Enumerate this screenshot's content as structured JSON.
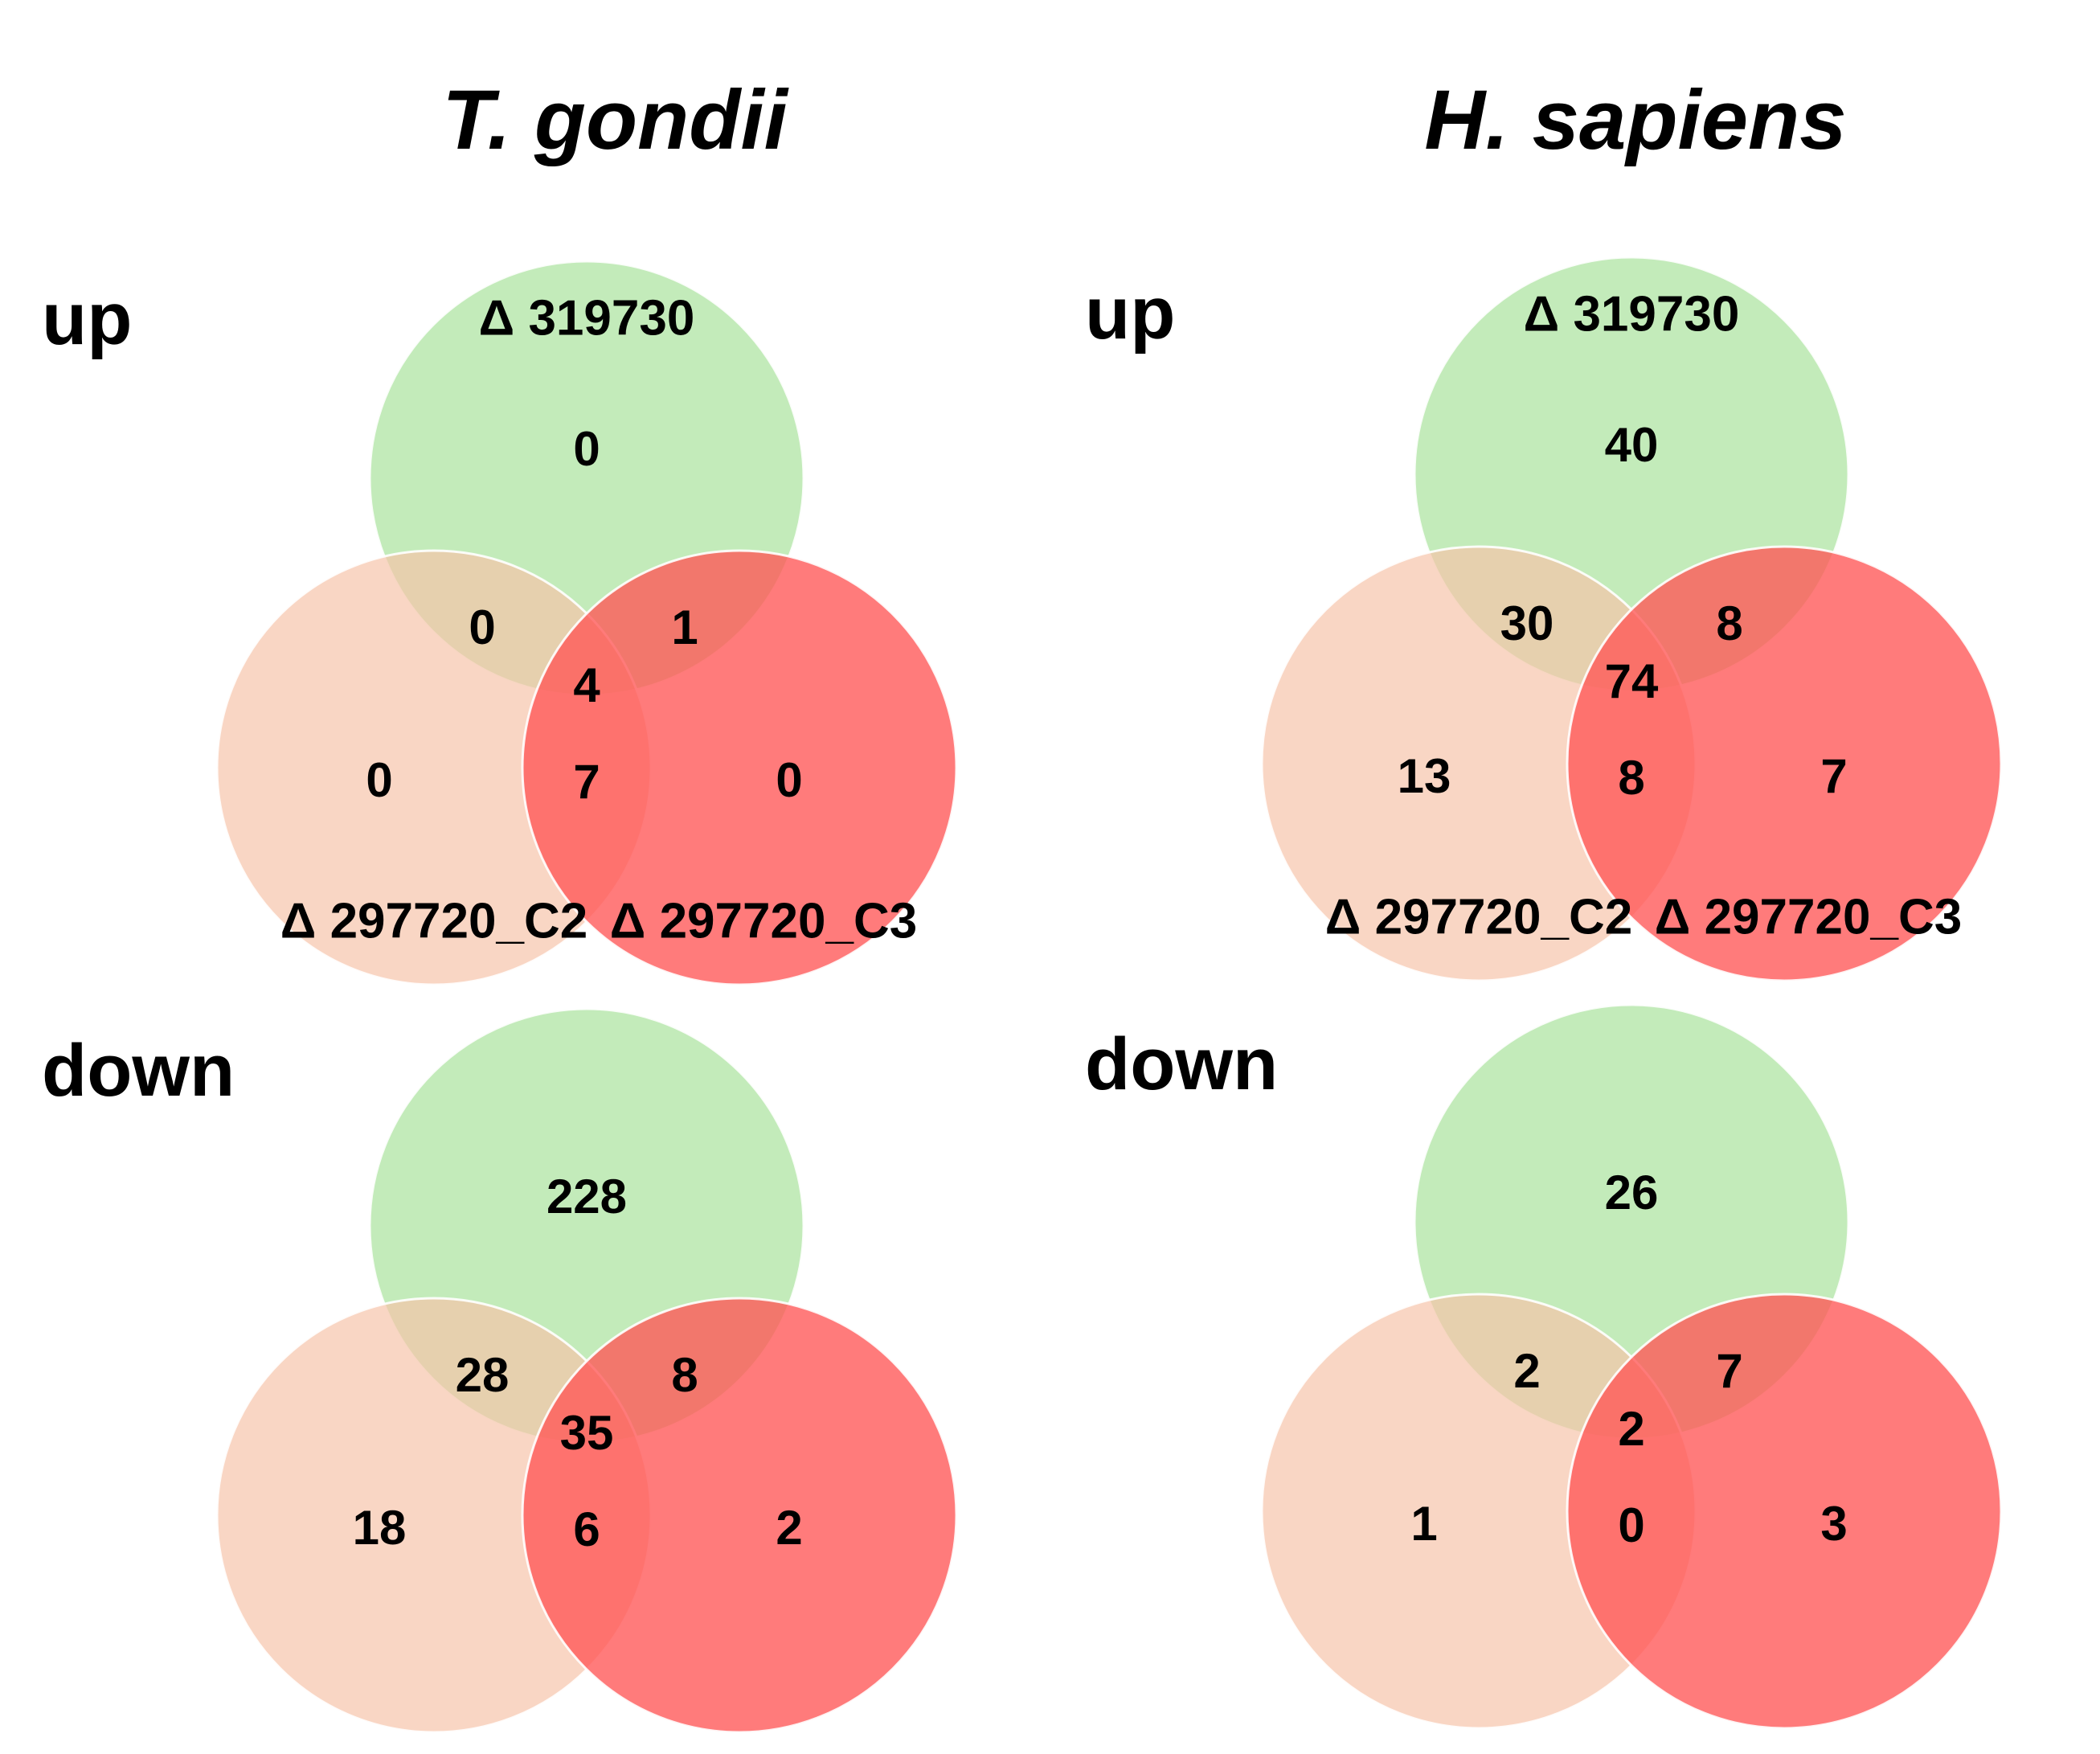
{
  "titles": {
    "left": "T. gondii",
    "right": "H. sapiens"
  },
  "row_labels": {
    "up": "up",
    "down": "down"
  },
  "colors": {
    "set_a": "#a6e29a",
    "set_b": "#f6c3a8",
    "set_c": "#ff5656"
  },
  "panels": [
    {
      "id": "tg-up",
      "set_labels": [
        "Δ 319730",
        "Δ 297720_C2",
        "Δ 297720_C3"
      ],
      "regions": {
        "a": "0",
        "ab": "0",
        "ac": "1",
        "abc": "4",
        "b": "0",
        "bc": "7",
        "c": "0"
      }
    },
    {
      "id": "hs-up",
      "set_labels": [
        "Δ 319730",
        "Δ 297720_C2",
        "Δ 297720_C3"
      ],
      "regions": {
        "a": "40",
        "ab": "30",
        "ac": "8",
        "abc": "74",
        "b": "13",
        "bc": "8",
        "c": "7"
      }
    },
    {
      "id": "tg-down",
      "set_labels": [
        "",
        "",
        ""
      ],
      "regions": {
        "a": "228",
        "ab": "28",
        "ac": "8",
        "abc": "35",
        "b": "18",
        "bc": "6",
        "c": "2"
      }
    },
    {
      "id": "hs-down",
      "set_labels": [
        "",
        "",
        ""
      ],
      "regions": {
        "a": "26",
        "ab": "2",
        "ac": "7",
        "abc": "2",
        "b": "1",
        "bc": "0",
        "c": "3"
      }
    }
  ]
}
